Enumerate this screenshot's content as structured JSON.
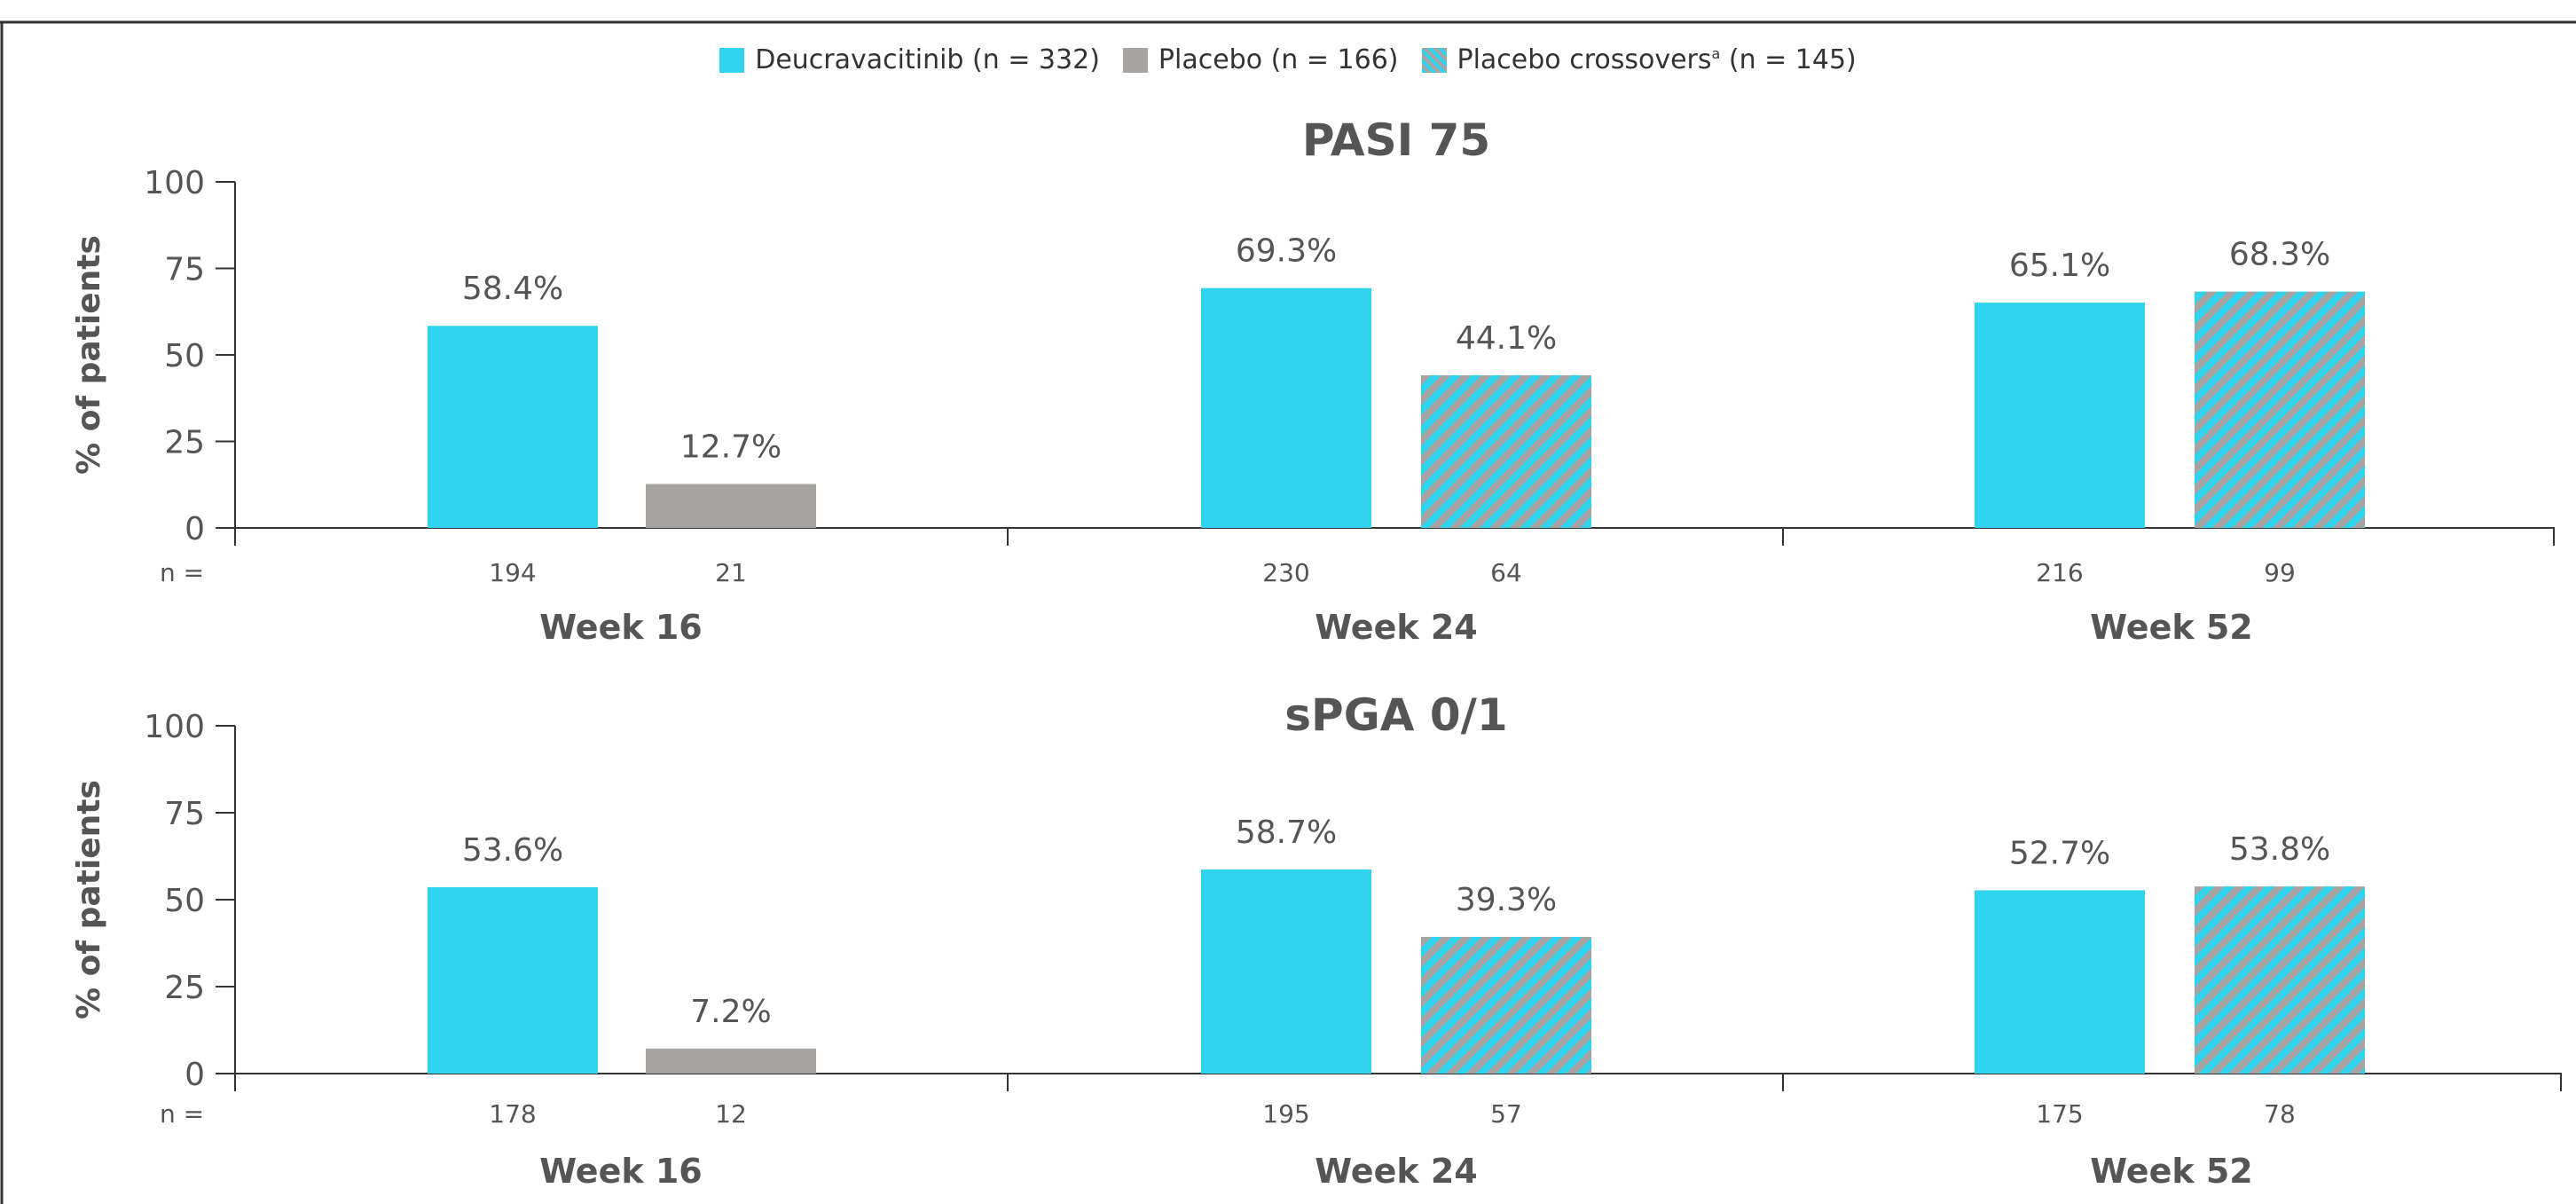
{
  "legend": {
    "items": [
      {
        "label": "Deucravacitinib (n = 332)",
        "key": "deucravacitinib"
      },
      {
        "label": "Placebo (n = 166)",
        "key": "placebo"
      },
      {
        "label_main": "Placebo crossovers",
        "label_sup": "a",
        "label_tail": " (n = 145)",
        "key": "crossover"
      }
    ]
  },
  "colors": {
    "deucravacitinib": "#31d4ee",
    "placebo": "#a8a3a3",
    "crossover_a": "#31d4ee",
    "crossover_b": "#a8a3a3",
    "axis": "#333333",
    "text": "#555555"
  },
  "chart_data": [
    {
      "type": "bar",
      "title": "PASI 75",
      "ylabel": "% of patients",
      "ylim": [
        0,
        100
      ],
      "yticks": [
        0,
        25,
        50,
        75,
        100
      ],
      "n_label": "n =",
      "categories": [
        "Week 16",
        "Week 24",
        "Week 52"
      ],
      "bars": [
        [
          {
            "series": "deucravacitinib",
            "value": 58.4,
            "label": "58.4%",
            "n": "194"
          },
          {
            "series": "placebo",
            "value": 12.7,
            "label": "12.7%",
            "n": "21"
          }
        ],
        [
          {
            "series": "deucravacitinib",
            "value": 69.3,
            "label": "69.3%",
            "n": "230"
          },
          {
            "series": "crossover",
            "value": 44.1,
            "label": "44.1%",
            "n": "64"
          }
        ],
        [
          {
            "series": "deucravacitinib",
            "value": 65.1,
            "label": "65.1%",
            "n": "216"
          },
          {
            "series": "crossover",
            "value": 68.3,
            "label": "68.3%",
            "n": "99"
          }
        ]
      ]
    },
    {
      "type": "bar",
      "title": "sPGA 0/1",
      "ylabel": "% of patients",
      "ylim": [
        0,
        100
      ],
      "yticks": [
        0,
        25,
        50,
        75,
        100
      ],
      "n_label": "n =",
      "categories": [
        "Week 16",
        "Week 24",
        "Week 52"
      ],
      "bars": [
        [
          {
            "series": "deucravacitinib",
            "value": 53.6,
            "label": "53.6%",
            "n": "178"
          },
          {
            "series": "placebo",
            "value": 7.2,
            "label": "7.2%",
            "n": "12"
          }
        ],
        [
          {
            "series": "deucravacitinib",
            "value": 58.7,
            "label": "58.7%",
            "n": "195"
          },
          {
            "series": "crossover",
            "value": 39.3,
            "label": "39.3%",
            "n": "57"
          }
        ],
        [
          {
            "series": "deucravacitinib",
            "value": 52.7,
            "label": "52.7%",
            "n": "175"
          },
          {
            "series": "crossover",
            "value": 53.8,
            "label": "53.8%",
            "n": "78"
          }
        ]
      ]
    }
  ]
}
